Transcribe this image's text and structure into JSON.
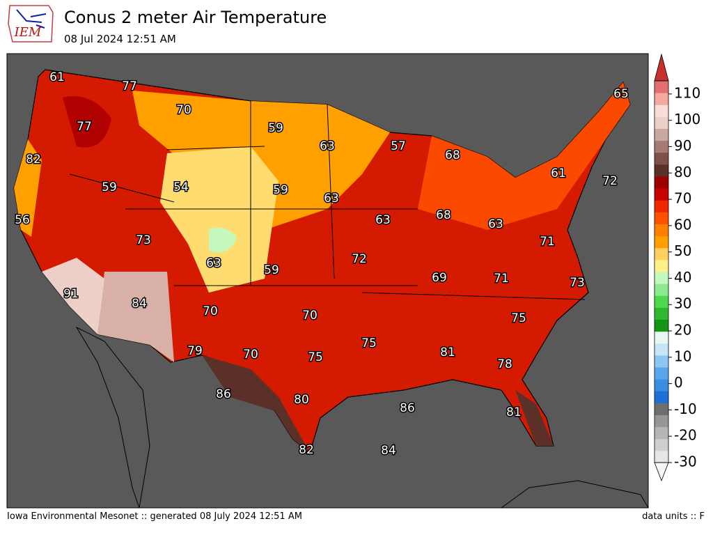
{
  "header": {
    "logo": "IEM",
    "title": "Conus 2 meter Air Temperature",
    "subtitle": "08 Jul 2024 12:51 AM"
  },
  "map": {
    "labels": [
      61,
      77,
      70,
      59,
      63,
      57,
      68,
      65,
      77,
      82,
      59,
      54,
      59,
      63,
      61,
      72,
      56,
      73,
      63,
      63,
      68,
      63,
      71,
      59,
      72,
      69,
      71,
      73,
      91,
      84,
      70,
      70,
      75,
      75,
      81,
      78,
      79,
      70,
      75,
      86,
      80,
      86,
      81,
      82,
      84
    ]
  },
  "colorbar": {
    "ticks": [
      -30,
      -20,
      -10,
      0,
      10,
      20,
      30,
      40,
      50,
      60,
      70,
      80,
      90,
      100,
      110
    ],
    "lim": [
      -30,
      115
    ],
    "colors": [
      "#e6e6e6",
      "#cfcfcf",
      "#b5b5b5",
      "#969696",
      "#6e6e6e",
      "#1f6fd8",
      "#3a8ce0",
      "#5aa6ec",
      "#8cc6f2",
      "#c4e6f6",
      "#e8f8f0",
      "#149614",
      "#2fb82f",
      "#4ed84e",
      "#8eea8e",
      "#c4f8bc",
      "#fff08a",
      "#ffd060",
      "#ffa000",
      "#ff8000",
      "#ff5000",
      "#f02800",
      "#c80000",
      "#a00000",
      "#5a3028",
      "#7e5048",
      "#a57c74",
      "#caa8a0",
      "#ecd0c8",
      "#f8dcd8",
      "#f4a8a0",
      "#e27070"
    ],
    "under": "#f6f6f6",
    "over": "#c83030"
  },
  "footer": {
    "left": "Iowa Environmental Mesonet :: generated 08 July 2024 12:51 AM",
    "right": "data units :: F"
  }
}
